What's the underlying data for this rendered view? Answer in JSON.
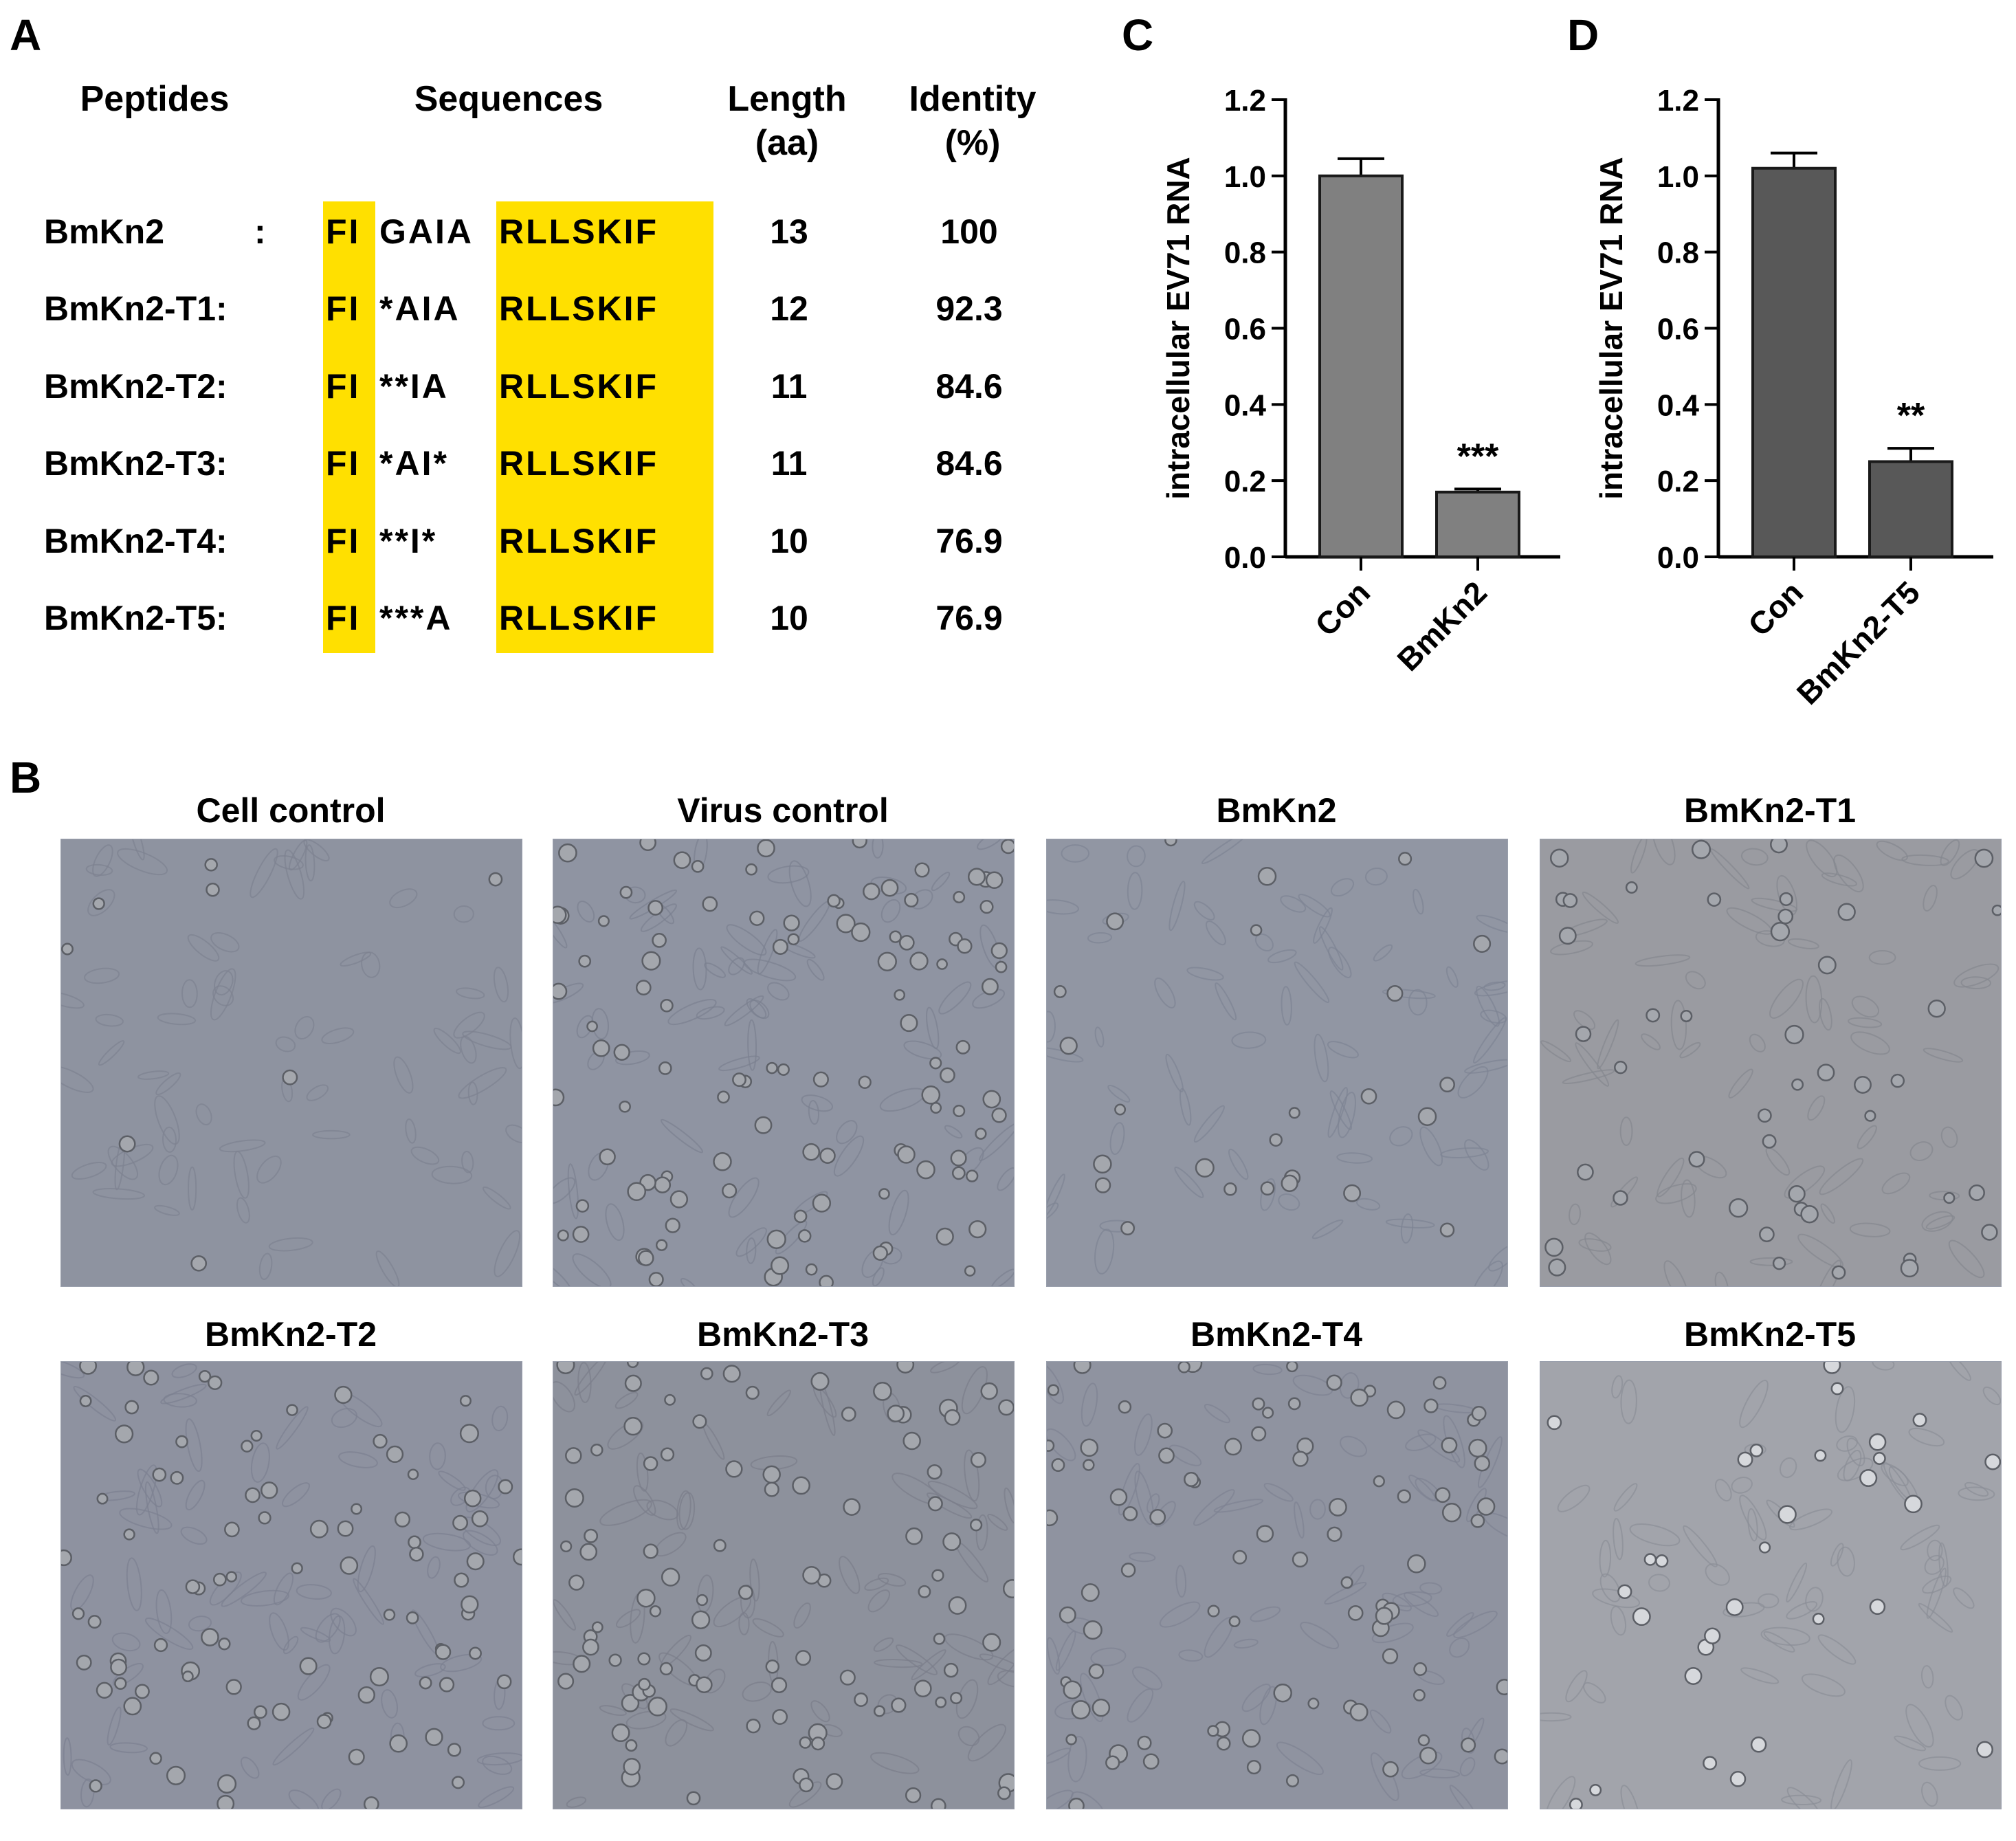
{
  "panels": {
    "a": "A",
    "b": "B",
    "c": "C",
    "d": "D"
  },
  "table": {
    "headers": {
      "peptides": "Peptides",
      "sequences": "Sequences",
      "length_line1": "Length",
      "length_line2": "(aa)",
      "identity_line1": "Identity",
      "identity_line2": "(%)"
    },
    "rows": [
      {
        "name": "BmKn2",
        "colon": ":",
        "fi": "FI",
        "mid": "GAIA",
        "tail": "RLLSKIF",
        "length": "13",
        "identity": "100"
      },
      {
        "name": "BmKn2-T1:",
        "colon": "",
        "fi": "FI",
        "mid": "*AIA",
        "tail": "RLLSKIF",
        "length": "12",
        "identity": "92.3"
      },
      {
        "name": "BmKn2-T2:",
        "colon": "",
        "fi": "FI",
        "mid": "**IA",
        "tail": "RLLSKIF",
        "length": "11",
        "identity": "84.6"
      },
      {
        "name": "BmKn2-T3:",
        "colon": "",
        "fi": "FI",
        "mid": "*AI*",
        "tail": "RLLSKIF",
        "length": "11",
        "identity": "84.6"
      },
      {
        "name": "BmKn2-T4:",
        "colon": "",
        "fi": "FI",
        "mid": "**I*",
        "tail": "RLLSKIF",
        "length": "10",
        "identity": "76.9"
      },
      {
        "name": "BmKn2-T5:",
        "colon": "",
        "fi": "FI",
        "mid": "***A",
        "tail": "RLLSKIF",
        "length": "10",
        "identity": "76.9"
      }
    ]
  },
  "images": {
    "titles": [
      "Cell control",
      "Virus control",
      "BmKn2",
      "BmKn2-T1",
      "BmKn2-T2",
      "BmKn2-T3",
      "BmKn2-T4",
      "BmKn2-T5"
    ]
  },
  "chart_data": [
    {
      "type": "bar",
      "title": "",
      "ylabel": "intracellular EV71 RNA",
      "xlabel": "",
      "ylim": [
        0,
        1.2
      ],
      "yticks": [
        0.0,
        0.2,
        0.4,
        0.6,
        0.8,
        1.0,
        1.2
      ],
      "yticklabels": [
        "0.0",
        "0.2",
        "0.4",
        "0.6",
        "0.8",
        "1.0",
        "1.2"
      ],
      "categories": [
        "Con",
        "BmKn2"
      ],
      "values": [
        1.0,
        0.17
      ],
      "errors": [
        0.045,
        0.008
      ],
      "significance": [
        "",
        "***"
      ],
      "bar_color": "#808080"
    },
    {
      "type": "bar",
      "title": "",
      "ylabel": "intracellular EV71 RNA",
      "xlabel": "",
      "ylim": [
        0,
        1.2
      ],
      "yticks": [
        0.0,
        0.2,
        0.4,
        0.6,
        0.8,
        1.0,
        1.2
      ],
      "yticklabels": [
        "0.0",
        "0.2",
        "0.4",
        "0.6",
        "0.8",
        "1.0",
        "1.2"
      ],
      "categories": [
        "Con",
        "BmKn2-T5"
      ],
      "values": [
        1.02,
        0.25
      ],
      "errors": [
        0.04,
        0.035
      ],
      "significance": [
        "",
        "**"
      ],
      "bar_color": "#585858"
    }
  ]
}
